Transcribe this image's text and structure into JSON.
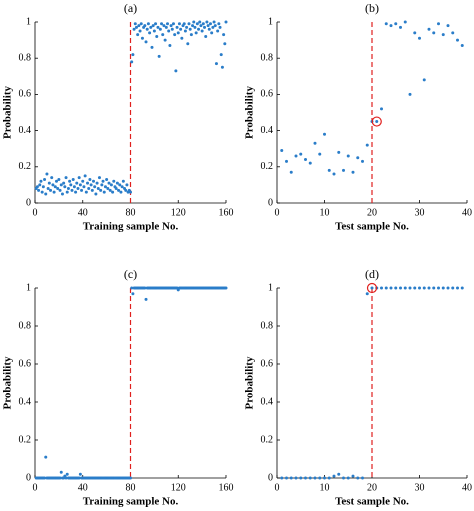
{
  "chart_data": [
    {
      "type": "scatter",
      "title": "(a)",
      "x_label": "Training sample No.",
      "y_label": "Probability",
      "color": "#2a7dc9",
      "vline": 80,
      "vline_color": "#e0201e",
      "xlim": [
        0,
        160
      ],
      "xticks": [
        0,
        40,
        80,
        120,
        160
      ],
      "ylim": [
        0,
        1
      ],
      "yticks": [
        0,
        0.2,
        0.4,
        0.6,
        0.8,
        1
      ],
      "x": [
        1,
        2,
        3,
        4,
        5,
        6,
        7,
        8,
        9,
        10,
        11,
        12,
        13,
        14,
        15,
        16,
        17,
        18,
        19,
        20,
        21,
        22,
        23,
        24,
        25,
        26,
        27,
        28,
        29,
        30,
        31,
        32,
        33,
        34,
        35,
        36,
        37,
        38,
        39,
        40,
        41,
        42,
        43,
        44,
        45,
        46,
        47,
        48,
        49,
        50,
        51,
        52,
        53,
        54,
        55,
        56,
        57,
        58,
        59,
        60,
        61,
        62,
        63,
        64,
        65,
        66,
        67,
        68,
        69,
        70,
        71,
        72,
        73,
        74,
        75,
        76,
        77,
        78,
        79,
        80,
        81,
        82,
        83,
        84,
        85,
        86,
        87,
        88,
        89,
        90,
        91,
        92,
        93,
        94,
        95,
        96,
        97,
        98,
        99,
        100,
        101,
        102,
        103,
        104,
        105,
        106,
        107,
        108,
        109,
        110,
        111,
        112,
        113,
        114,
        115,
        116,
        117,
        118,
        119,
        120,
        121,
        122,
        123,
        124,
        125,
        126,
        127,
        128,
        129,
        130,
        131,
        132,
        133,
        134,
        135,
        136,
        137,
        138,
        139,
        140,
        141,
        142,
        143,
        144,
        145,
        146,
        147,
        148,
        149,
        150,
        151,
        152,
        153,
        154,
        155,
        156,
        157,
        158,
        159,
        160
      ],
      "values": [
        0.08,
        0.09,
        0.07,
        0.1,
        0.12,
        0.06,
        0.09,
        0.13,
        0.05,
        0.16,
        0.08,
        0.11,
        0.07,
        0.14,
        0.1,
        0.06,
        0.09,
        0.12,
        0.08,
        0.13,
        0.07,
        0.1,
        0.05,
        0.11,
        0.09,
        0.14,
        0.06,
        0.08,
        0.12,
        0.1,
        0.07,
        0.13,
        0.09,
        0.06,
        0.11,
        0.08,
        0.14,
        0.1,
        0.07,
        0.12,
        0.09,
        0.15,
        0.06,
        0.11,
        0.08,
        0.13,
        0.1,
        0.07,
        0.12,
        0.09,
        0.05,
        0.11,
        0.08,
        0.14,
        0.07,
        0.1,
        0.12,
        0.06,
        0.09,
        0.13,
        0.08,
        0.11,
        0.07,
        0.1,
        0.06,
        0.12,
        0.09,
        0.08,
        0.11,
        0.07,
        0.1,
        0.06,
        0.09,
        0.12,
        0.08,
        0.07,
        0.1,
        0.06,
        0.07,
        0.06,
        0.78,
        0.82,
        0.96,
        0.99,
        0.97,
        0.93,
        0.98,
        0.95,
        0.99,
        0.91,
        0.97,
        0.98,
        0.89,
        0.96,
        0.99,
        0.94,
        0.97,
        0.86,
        0.98,
        0.95,
        0.99,
        0.92,
        0.97,
        0.81,
        0.96,
        0.99,
        0.93,
        0.98,
        0.9,
        0.97,
        0.99,
        0.95,
        0.87,
        0.98,
        0.96,
        0.99,
        0.93,
        0.73,
        0.97,
        0.94,
        0.99,
        0.96,
        0.91,
        0.98,
        0.99,
        0.95,
        0.97,
        0.88,
        0.99,
        0.96,
        0.93,
        0.98,
        1.0,
        0.97,
        0.94,
        0.99,
        0.96,
        1.0,
        0.98,
        0.95,
        0.99,
        0.97,
        0.92,
        1.0,
        0.98,
        0.96,
        0.99,
        0.94,
        0.97,
        1.0,
        0.98,
        0.77,
        0.95,
        0.99,
        0.97,
        0.82,
        0.75,
        0.93,
        0.88,
        1.0
      ]
    },
    {
      "type": "scatter",
      "title": "(b)",
      "x_label": "Test sample No.",
      "y_label": "Probability",
      "color": "#2a7dc9",
      "vline": 20,
      "vline_color": "#e0201e",
      "highlight": 20,
      "xlim": [
        0,
        40
      ],
      "xticks": [
        0,
        10,
        20,
        30,
        40
      ],
      "ylim": [
        0,
        1
      ],
      "yticks": [
        0,
        0.2,
        0.4,
        0.6,
        0.8,
        1
      ],
      "x": [
        1,
        2,
        3,
        4,
        5,
        6,
        7,
        8,
        9,
        10,
        11,
        12,
        13,
        14,
        15,
        16,
        17,
        18,
        19,
        20,
        21,
        22,
        23,
        24,
        25,
        26,
        27,
        28,
        29,
        30,
        31,
        32,
        33,
        34,
        35,
        36,
        37,
        38,
        39
      ],
      "values": [
        0.29,
        0.23,
        0.17,
        0.26,
        0.27,
        0.24,
        0.22,
        0.33,
        0.27,
        0.38,
        0.18,
        0.16,
        0.28,
        0.18,
        0.26,
        0.17,
        0.25,
        0.23,
        0.32,
        0.45,
        0.45,
        0.52,
        0.99,
        0.98,
        0.99,
        0.97,
        1.0,
        0.6,
        0.94,
        0.91,
        0.68,
        0.96,
        0.94,
        0.99,
        0.93,
        0.98,
        0.94,
        0.9,
        0.87
      ]
    },
    {
      "type": "scatter",
      "title": "(c)",
      "x_label": "Training sample No.",
      "y_label": "Probability",
      "color": "#2a7dc9",
      "vline": 80,
      "vline_color": "#e0201e",
      "xlim": [
        0,
        160
      ],
      "xticks": [
        0,
        40,
        80,
        120,
        160
      ],
      "ylim": [
        0,
        1
      ],
      "yticks": [
        0,
        0.2,
        0.4,
        0.6,
        0.8,
        1
      ],
      "x": [
        1,
        2,
        3,
        4,
        5,
        6,
        7,
        8,
        9,
        10,
        11,
        12,
        13,
        14,
        15,
        16,
        17,
        18,
        19,
        20,
        21,
        22,
        23,
        24,
        25,
        26,
        27,
        28,
        29,
        30,
        31,
        32,
        33,
        34,
        35,
        36,
        37,
        38,
        39,
        40,
        41,
        42,
        43,
        44,
        45,
        46,
        47,
        48,
        49,
        50,
        51,
        52,
        53,
        54,
        55,
        56,
        57,
        58,
        59,
        60,
        61,
        62,
        63,
        64,
        65,
        66,
        67,
        68,
        69,
        70,
        71,
        72,
        73,
        74,
        75,
        76,
        77,
        78,
        79,
        80,
        81,
        82,
        83,
        84,
        85,
        86,
        87,
        88,
        89,
        90,
        91,
        92,
        93,
        94,
        95,
        96,
        97,
        98,
        99,
        100,
        101,
        102,
        103,
        104,
        105,
        106,
        107,
        108,
        109,
        110,
        111,
        112,
        113,
        114,
        115,
        116,
        117,
        118,
        119,
        120,
        121,
        122,
        123,
        124,
        125,
        126,
        127,
        128,
        129,
        130,
        131,
        132,
        133,
        134,
        135,
        136,
        137,
        138,
        139,
        140,
        141,
        142,
        143,
        144,
        145,
        146,
        147,
        148,
        149,
        150,
        151,
        152,
        153,
        154,
        155,
        156,
        157,
        158,
        159,
        160
      ],
      "values": [
        0,
        0,
        0,
        0,
        0,
        0,
        0,
        0,
        0.11,
        0,
        0,
        0,
        0,
        0,
        0,
        0,
        0,
        0,
        0,
        0,
        0,
        0.03,
        0,
        0,
        0.01,
        0,
        0.02,
        0,
        0,
        0,
        0,
        0,
        0,
        0,
        0,
        0,
        0,
        0.02,
        0,
        0,
        0,
        0,
        0,
        0,
        0,
        0,
        0,
        0,
        0,
        0,
        0,
        0,
        0,
        0,
        0,
        0,
        0,
        0,
        0,
        0,
        0,
        0,
        0,
        0,
        0,
        0,
        0,
        0,
        0,
        0,
        0,
        0,
        0,
        0,
        0,
        0,
        0,
        0,
        0,
        0,
        1,
        0.97,
        1,
        1,
        1,
        1,
        1,
        1,
        1,
        1,
        1,
        1,
        0.94,
        1,
        1,
        1,
        1,
        1,
        1,
        1,
        1,
        1,
        1,
        1,
        1,
        1,
        1,
        1,
        1,
        1,
        1,
        1,
        1,
        1,
        1,
        1,
        1,
        1,
        1,
        0.99,
        1,
        1,
        1,
        1,
        1,
        1,
        1,
        1,
        1,
        1,
        1,
        1,
        1,
        1,
        1,
        1,
        1,
        1,
        1,
        1,
        1,
        1,
        1,
        1,
        1,
        1,
        1,
        1,
        1,
        1,
        1,
        1,
        1,
        1,
        1,
        1,
        1,
        1,
        1,
        1
      ]
    },
    {
      "type": "scatter",
      "title": "(d)",
      "x_label": "Test sample No.",
      "y_label": "Probability",
      "color": "#2a7dc9",
      "vline": 20,
      "vline_color": "#e0201e",
      "highlight": 19,
      "xlim": [
        0,
        40
      ],
      "xticks": [
        0,
        10,
        20,
        30,
        40
      ],
      "ylim": [
        0,
        1
      ],
      "yticks": [
        0,
        0.2,
        0.4,
        0.6,
        0.8,
        1
      ],
      "x": [
        1,
        2,
        3,
        4,
        5,
        6,
        7,
        8,
        9,
        10,
        11,
        12,
        13,
        14,
        15,
        16,
        17,
        18,
        19,
        20,
        21,
        22,
        23,
        24,
        25,
        26,
        27,
        28,
        29,
        30,
        31,
        32,
        33,
        34,
        35,
        36,
        37,
        38,
        39
      ],
      "values": [
        0,
        0,
        0,
        0,
        0,
        0,
        0,
        0,
        0,
        0,
        0,
        0.01,
        0.02,
        0,
        0,
        0.01,
        0,
        0,
        0.97,
        1,
        1,
        1,
        1,
        1,
        1,
        1,
        1,
        1,
        1,
        1,
        1,
        1,
        1,
        1,
        1,
        1,
        1,
        1,
        1
      ]
    }
  ]
}
